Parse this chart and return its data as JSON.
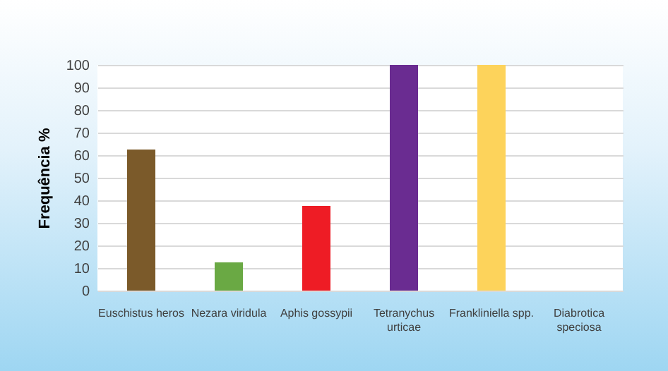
{
  "chart_data": {
    "type": "bar",
    "ylabel": "Frequência %",
    "categories": [
      "Euschistus heros",
      "Nezara viridula",
      "Aphis gossypii",
      "Tetranychus urticae",
      "Frankliniella spp.",
      "Diabrotica speciosa"
    ],
    "values": [
      62.5,
      12.5,
      37.5,
      100,
      100,
      0
    ],
    "colors": [
      "#7b5a2a",
      "#6aa944",
      "#ee1c25",
      "#6a2c91",
      "#fdd35b",
      "#7f7f7f"
    ],
    "ylim": [
      0,
      100
    ],
    "yticks": [
      0,
      10,
      20,
      30,
      40,
      50,
      60,
      70,
      80,
      90,
      100
    ],
    "grid": "y"
  }
}
